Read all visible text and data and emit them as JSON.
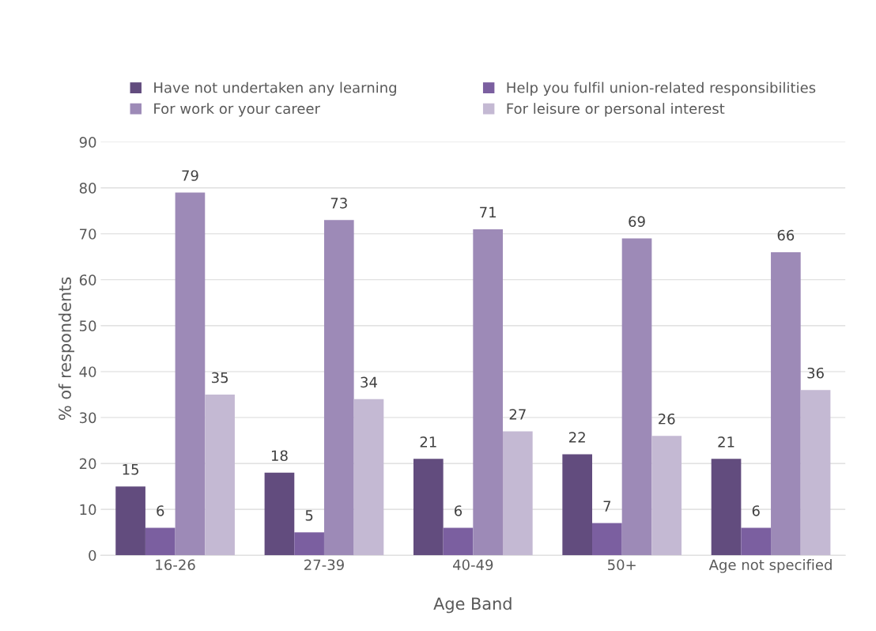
{
  "chart_data": {
    "type": "bar",
    "xlabel": "Age Band",
    "ylabel": "% of respondents",
    "categories": [
      "16-26",
      "27-39",
      "40-49",
      "50+",
      "Age not specified"
    ],
    "series": [
      {
        "name": "Have not undertaken any learning",
        "color": "#624c7e",
        "values": [
          15,
          18,
          21,
          22,
          21
        ]
      },
      {
        "name": "Help you fulfil union-related responsibilities",
        "color": "#7b5fa0",
        "values": [
          6,
          5,
          6,
          7,
          6
        ]
      },
      {
        "name": "For work or your career",
        "color": "#9d8ab7",
        "values": [
          79,
          73,
          71,
          69,
          66
        ]
      },
      {
        "name": "For leisure or personal interest",
        "color": "#c4b9d3",
        "values": [
          35,
          34,
          27,
          26,
          36
        ]
      }
    ],
    "ylim": [
      0,
      90
    ],
    "yticks": [
      0,
      10,
      20,
      30,
      40,
      50,
      60,
      70,
      80,
      90
    ],
    "grid": "y",
    "legend": "top",
    "data_labels": true
  }
}
